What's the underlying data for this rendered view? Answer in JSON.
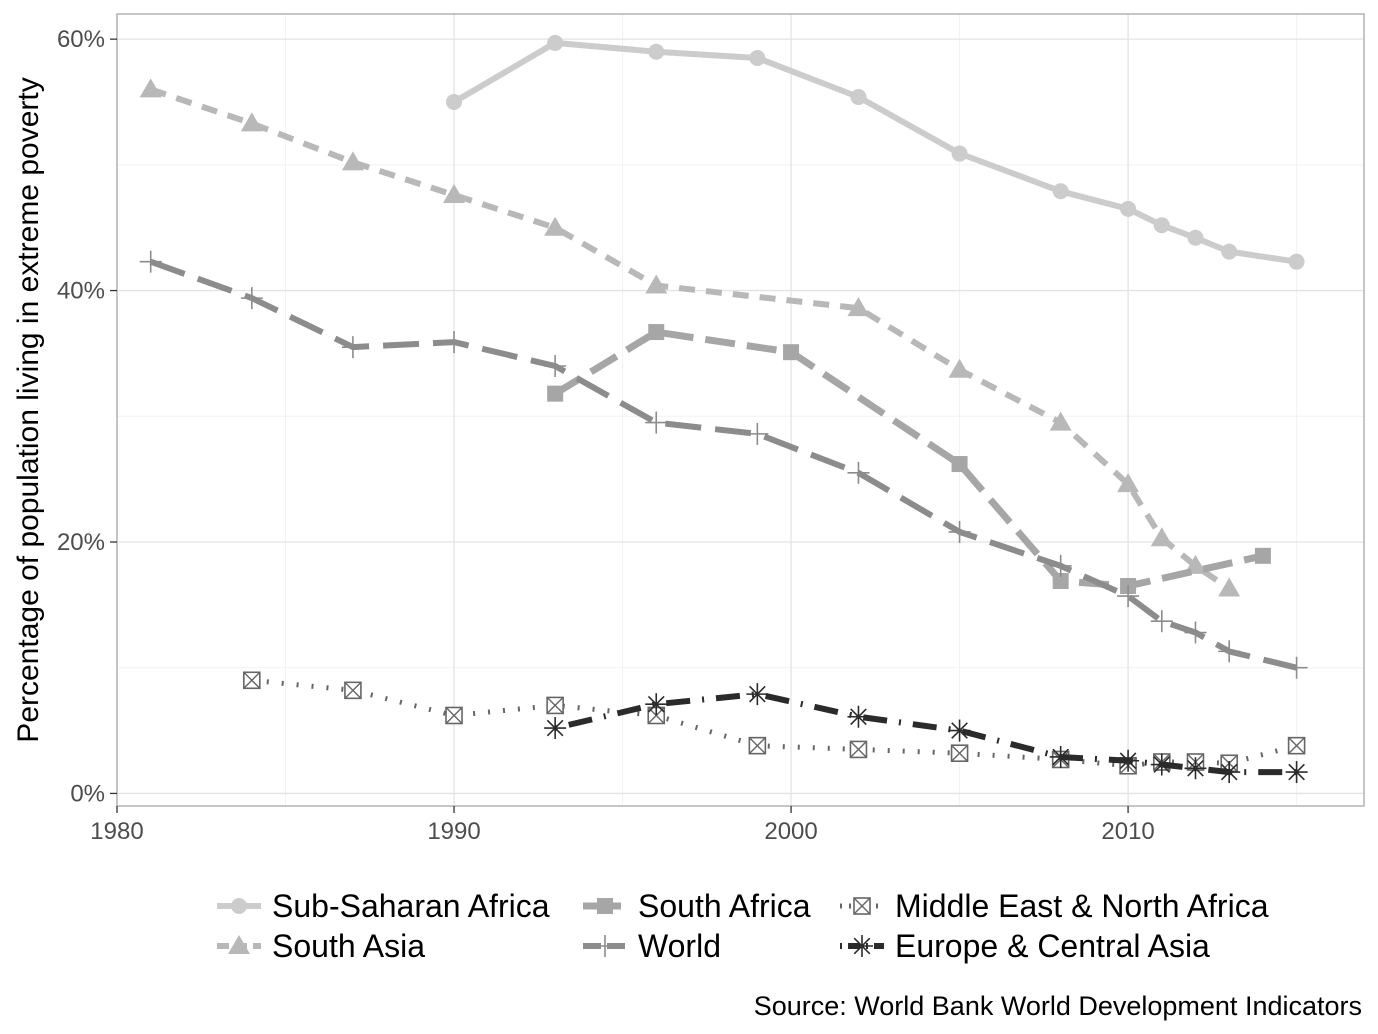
{
  "chart_data": {
    "type": "line",
    "title": "",
    "xlabel": "",
    "ylabel": "Percentage of population living in extreme poverty",
    "caption": "Source: World Bank World Development Indicators",
    "xlim": [
      1980,
      2017
    ],
    "ylim": [
      -1,
      62
    ],
    "x_ticks": [
      1980,
      1990,
      2000,
      2010
    ],
    "x_tick_labels": [
      "1980",
      "1990",
      "2000",
      "2010"
    ],
    "y_ticks": [
      0,
      20,
      40,
      60
    ],
    "y_tick_labels": [
      "0%",
      "20%",
      "40%",
      "60%"
    ],
    "grid": true,
    "legend_position": "bottom",
    "series": [
      {
        "name": "Sub-Saharan Africa",
        "color": "#cccccc",
        "linetype": "solid",
        "marker": "circle",
        "x": [
          1990,
          1993,
          1996,
          1999,
          2002,
          2005,
          2008,
          2010,
          2011,
          2012,
          2013,
          2015
        ],
        "values": [
          55.0,
          59.7,
          59.0,
          58.5,
          55.4,
          50.9,
          47.9,
          46.5,
          45.2,
          44.2,
          43.1,
          42.3
        ]
      },
      {
        "name": "South Asia",
        "color": "#b8b8b8",
        "linetype": "dashed-short",
        "marker": "triangle",
        "x": [
          1981,
          1984,
          1987,
          1990,
          1993,
          1996,
          2002,
          2005,
          2008,
          2010,
          2011,
          2012,
          2013
        ],
        "values": [
          56.0,
          53.3,
          50.2,
          47.6,
          45.0,
          40.4,
          38.6,
          33.7,
          29.5,
          24.6,
          20.3,
          18.1,
          16.3
        ]
      },
      {
        "name": "South Africa",
        "color": "#a6a6a6",
        "linetype": "dashed-long",
        "marker": "square",
        "x": [
          1993,
          1996,
          2000,
          2005,
          2008,
          2010,
          2014
        ],
        "values": [
          31.8,
          36.7,
          35.1,
          26.2,
          16.9,
          16.5,
          18.9
        ]
      },
      {
        "name": "World",
        "color": "#8c8c8c",
        "linetype": "longdash",
        "marker": "plus",
        "x": [
          1981,
          1984,
          1987,
          1990,
          1993,
          1996,
          1999,
          2002,
          2005,
          2008,
          2010,
          2011,
          2012,
          2013,
          2015
        ],
        "values": [
          42.3,
          39.4,
          35.5,
          35.9,
          34.0,
          29.5,
          28.6,
          25.5,
          20.8,
          18.1,
          15.7,
          13.7,
          12.8,
          11.3,
          10.0
        ]
      },
      {
        "name": "Middle East & North Africa",
        "color": "#666666",
        "linetype": "dotted",
        "marker": "boxcross",
        "x": [
          1984,
          1987,
          1990,
          1993,
          1996,
          1999,
          2002,
          2005,
          2008,
          2010,
          2011,
          2012,
          2013,
          2015
        ],
        "values": [
          9.0,
          8.2,
          6.2,
          7.0,
          6.2,
          3.8,
          3.5,
          3.2,
          2.7,
          2.2,
          2.5,
          2.5,
          2.4,
          3.8
        ]
      },
      {
        "name": "Europe & Central Asia",
        "color": "#2b2b2b",
        "linetype": "dotdash",
        "marker": "asterisk",
        "x": [
          1993,
          1996,
          1999,
          2002,
          2005,
          2008,
          2010,
          2011,
          2012,
          2013,
          2015
        ],
        "values": [
          5.2,
          7.1,
          7.9,
          6.1,
          5.0,
          2.9,
          2.6,
          2.3,
          2.0,
          1.7,
          1.7
        ]
      }
    ]
  }
}
